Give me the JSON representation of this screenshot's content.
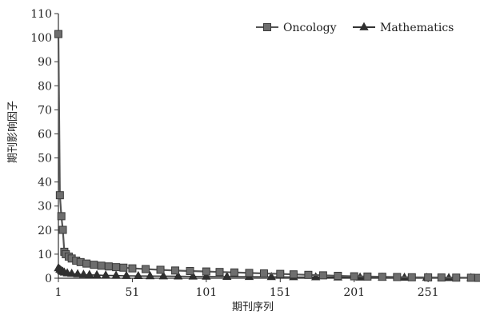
{
  "chart_data": {
    "type": "line",
    "title": "",
    "xlabel": "期刊序列",
    "ylabel": "期刊影响因子",
    "xlim": [
      1,
      285
    ],
    "ylim": [
      0,
      110
    ],
    "x_ticks": [
      1,
      51,
      101,
      151,
      201,
      251
    ],
    "y_ticks": [
      0,
      10,
      20,
      30,
      40,
      50,
      60,
      70,
      80,
      90,
      100,
      110
    ],
    "grid": false,
    "legend_position": "top-right",
    "series": [
      {
        "name": "Oncology",
        "marker": "square",
        "color": "#555555",
        "points": [
          [
            1,
            101.5
          ],
          [
            2,
            34.5
          ],
          [
            3,
            25.8
          ],
          [
            4,
            20.1
          ],
          [
            5,
            11.0
          ],
          [
            6,
            10.0
          ],
          [
            8,
            9.0
          ],
          [
            10,
            8.2
          ],
          [
            13,
            7.3
          ],
          [
            16,
            6.7
          ],
          [
            20,
            6.1
          ],
          [
            25,
            5.6
          ],
          [
            30,
            5.2
          ],
          [
            35,
            4.9
          ],
          [
            40,
            4.6
          ],
          [
            45,
            4.4
          ],
          [
            51,
            4.1
          ],
          [
            60,
            3.8
          ],
          [
            70,
            3.5
          ],
          [
            80,
            3.2
          ],
          [
            90,
            3.0
          ],
          [
            101,
            2.8
          ],
          [
            110,
            2.6
          ],
          [
            120,
            2.4
          ],
          [
            130,
            2.2
          ],
          [
            140,
            2.0
          ],
          [
            151,
            1.8
          ],
          [
            160,
            1.6
          ],
          [
            170,
            1.4
          ],
          [
            180,
            1.2
          ],
          [
            190,
            1.0
          ],
          [
            201,
            0.8
          ],
          [
            210,
            0.7
          ],
          [
            220,
            0.6
          ],
          [
            230,
            0.5
          ],
          [
            240,
            0.4
          ],
          [
            251,
            0.35
          ],
          [
            260,
            0.3
          ],
          [
            270,
            0.25
          ],
          [
            280,
            0.2
          ],
          [
            285,
            0.15
          ]
        ]
      },
      {
        "name": "Mathematics",
        "marker": "triangle",
        "color": "#333333",
        "points": [
          [
            1,
            4.2
          ],
          [
            2,
            3.6
          ],
          [
            3,
            3.1
          ],
          [
            4,
            2.7
          ],
          [
            5,
            2.4
          ],
          [
            7,
            2.1
          ],
          [
            10,
            1.9
          ],
          [
            14,
            1.7
          ],
          [
            18,
            1.5
          ],
          [
            22,
            1.4
          ],
          [
            27,
            1.3
          ],
          [
            33,
            1.2
          ],
          [
            40,
            1.1
          ],
          [
            47,
            1.0
          ],
          [
            55,
            0.95
          ],
          [
            63,
            0.9
          ],
          [
            72,
            0.85
          ],
          [
            82,
            0.8
          ],
          [
            92,
            0.75
          ],
          [
            101,
            0.7
          ],
          [
            115,
            0.65
          ],
          [
            130,
            0.6
          ],
          [
            145,
            0.55
          ],
          [
            160,
            0.5
          ],
          [
            175,
            0.45
          ],
          [
            190,
            0.4
          ],
          [
            205,
            0.35
          ],
          [
            220,
            0.3
          ],
          [
            235,
            0.25
          ],
          [
            250,
            0.2
          ],
          [
            265,
            0.15
          ],
          [
            280,
            0.12
          ]
        ]
      }
    ]
  }
}
